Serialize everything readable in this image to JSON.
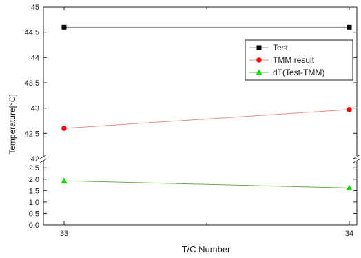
{
  "chart_data": {
    "type": "line",
    "xlabel": "T/C Number",
    "ylabel": "Temperature[°C]",
    "x": [
      33,
      34
    ],
    "x_tick_labels": [
      "33",
      "34"
    ],
    "y_break": true,
    "upper_axis": {
      "ylim": [
        42,
        45
      ],
      "tick_labels": [
        "42",
        "42.5",
        "43",
        "43.5",
        "44",
        "44.5",
        "45"
      ]
    },
    "lower_axis": {
      "ylim": [
        0,
        2.9
      ],
      "tick_labels": [
        "0.0",
        "0.5",
        "1.0",
        "1.5",
        "2.0",
        "2.5"
      ]
    },
    "series": [
      {
        "name": "Test",
        "values": [
          44.6,
          44.6
        ],
        "color": "#888888",
        "marker_color": "#000000",
        "marker": "square",
        "axis": "upper"
      },
      {
        "name": "TMM result",
        "values": [
          42.6,
          42.97
        ],
        "color": "#e88a8a",
        "marker_color": "#ff0000",
        "marker": "circle",
        "axis": "upper"
      },
      {
        "name": "dT(Test-TMM)",
        "values": [
          1.93,
          1.62
        ],
        "color": "#66aa44",
        "marker_color": "#00dd00",
        "marker": "triangle",
        "axis": "lower"
      }
    ],
    "legend_position": "top-right",
    "grid": false
  }
}
